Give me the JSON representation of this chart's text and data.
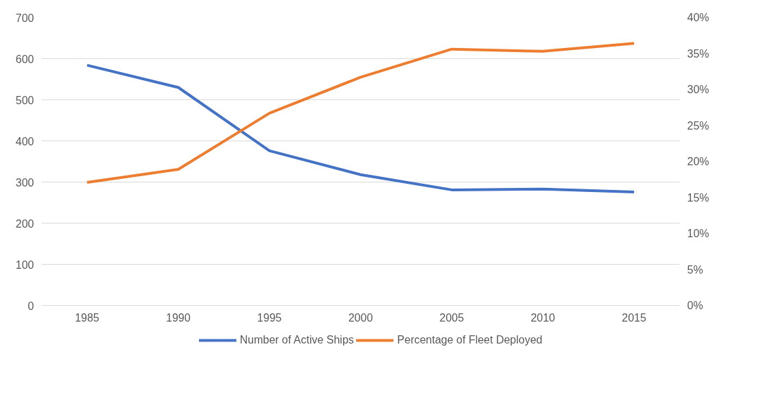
{
  "chart_data": {
    "type": "line",
    "categories": [
      "1985",
      "1990",
      "1995",
      "2000",
      "2005",
      "2010",
      "2015"
    ],
    "series": [
      {
        "name": "Number of Active Ships",
        "color": "#4472c4",
        "values": [
          584,
          530,
          376,
          318,
          281,
          283,
          276
        ]
      },
      {
        "name": "Percentage of Fleet Deployed",
        "color": "#ed7d31",
        "axis": "y2",
        "values": [
          17.1,
          18.9,
          26.7,
          31.7,
          35.6,
          35.3,
          36.4
        ]
      }
    ],
    "ylim": [
      0,
      700
    ],
    "yticks": [
      0,
      100,
      200,
      300,
      400,
      500,
      600,
      700
    ],
    "y2lim": [
      0,
      40
    ],
    "y2ticks": [
      {
        "value": 0,
        "label": "0%"
      },
      {
        "value": 5,
        "label": "5%"
      },
      {
        "value": 10,
        "label": "10%"
      },
      {
        "value": 15,
        "label": "15%"
      },
      {
        "value": 20,
        "label": "20%"
      },
      {
        "value": 25,
        "label": "25%"
      },
      {
        "value": 30,
        "label": "30%"
      },
      {
        "value": 35,
        "label": "35%"
      },
      {
        "value": 40,
        "label": "40%"
      }
    ],
    "grid": "y",
    "legend": "bottom",
    "marker": "none",
    "line_style": "solid"
  }
}
